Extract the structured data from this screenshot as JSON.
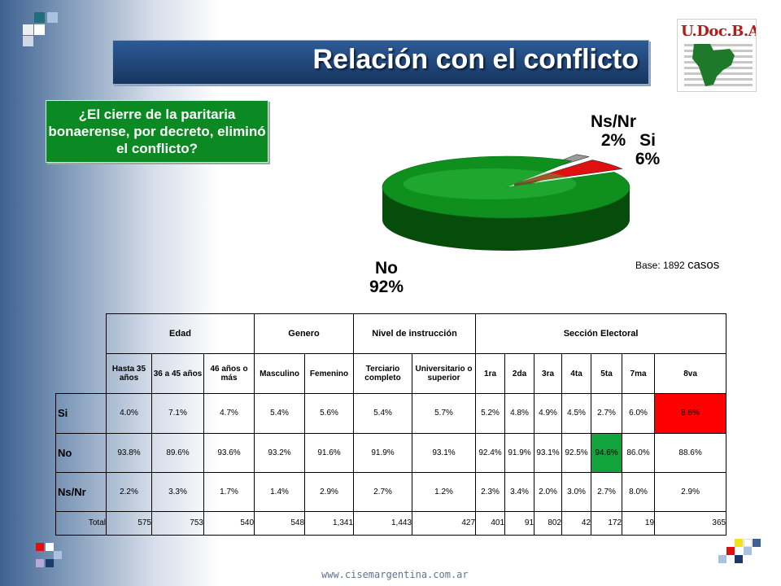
{
  "title": "Relación con el conflicto",
  "question": "¿El cierre de la paritaria bonaerense, por decreto, eliminó el conflicto?",
  "logo_text": "U.Doc.B.A.",
  "base": {
    "prefix": "Base: 1892",
    "suffix": "casos"
  },
  "footer": "www.cisemargentina.com.ar",
  "colors": {
    "no": "#0f8f1e",
    "si": "#e01010",
    "nsnr": "#9a9a9a",
    "title_bar": "#23497c",
    "question_box": "#0b8a23"
  },
  "chart_data": {
    "type": "pie",
    "slices": [
      {
        "label": "No",
        "value": 92,
        "value_label": "92%"
      },
      {
        "label": "Si",
        "value": 6,
        "value_label": "6%"
      },
      {
        "label": "Ns/Nr",
        "value": 2,
        "value_label": "2%"
      }
    ]
  },
  "table": {
    "groups": [
      "Edad",
      "Genero",
      "Nivel de instrucción",
      "Sección Electoral"
    ],
    "columns": [
      "Hasta 35 años",
      "36 a 45 años",
      "46 años o más",
      "Masculino",
      "Femenino",
      "Terciario completo",
      "Universitario o superior",
      "1ra",
      "2da",
      "3ra",
      "4ta",
      "5ta",
      "7ma",
      "8va"
    ],
    "rows": [
      {
        "label": "Si",
        "values": [
          "4.0%",
          "7.1%",
          "4.7%",
          "5.4%",
          "5.6%",
          "5.4%",
          "5.7%",
          "5.2%",
          "4.8%",
          "4.9%",
          "4.5%",
          "2.7%",
          "6.0%",
          "8.6%"
        ]
      },
      {
        "label": "No",
        "values": [
          "93.8%",
          "89.6%",
          "93.6%",
          "93.2%",
          "91.6%",
          "91.9%",
          "93.1%",
          "92.4%",
          "91.9%",
          "93.1%",
          "92.5%",
          "94.6%",
          "86.0%",
          "88.6%"
        ]
      },
      {
        "label": "Ns/Nr",
        "values": [
          "2.2%",
          "3.3%",
          "1.7%",
          "1.4%",
          "2.9%",
          "2.7%",
          "1.2%",
          "2.3%",
          "3.4%",
          "2.0%",
          "3.0%",
          "2.7%",
          "8.0%",
          "2.9%"
        ]
      },
      {
        "label": "Total",
        "values": [
          "575",
          "753",
          "540",
          "548",
          "1,341",
          "1,443",
          "427",
          "401",
          "91",
          "802",
          "42",
          "172",
          "19",
          "365"
        ]
      }
    ]
  }
}
